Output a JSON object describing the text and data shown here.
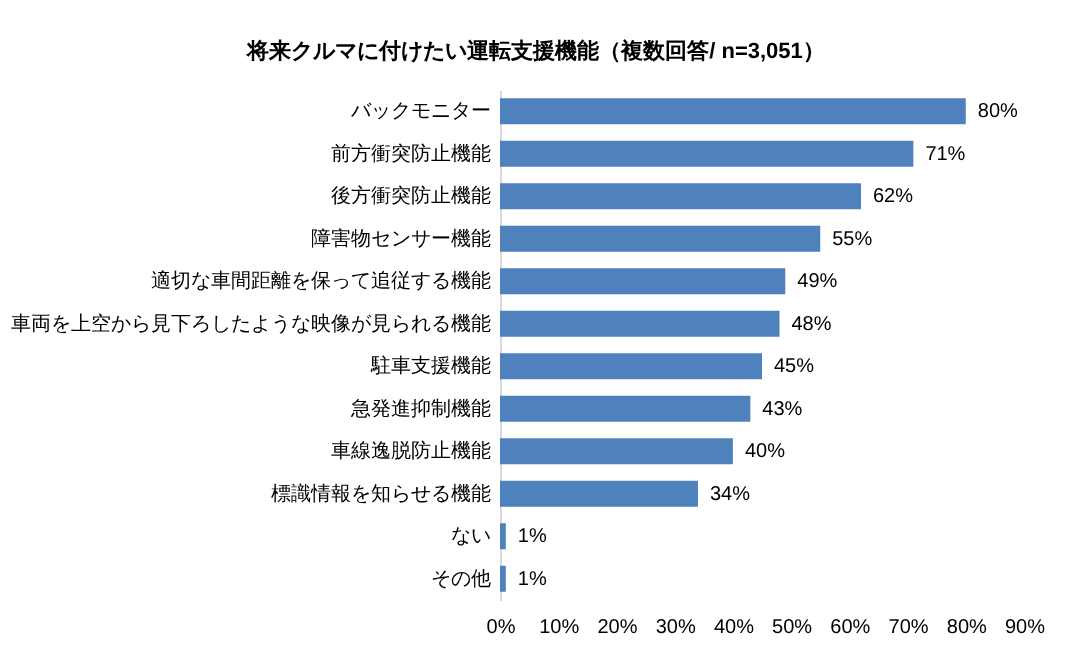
{
  "chart_data": {
    "type": "bar",
    "orientation": "horizontal",
    "title": "将来クルマに付けたい運転支援機能（複数回答/ n=3,051）",
    "categories": [
      "バックモニター",
      "前方衝突防止機能",
      "後方衝突防止機能",
      "障害物センサー機能",
      "適切な車間距離を保って追従する機能",
      "車両を上空から見下ろしたような映像が見られる機能",
      "駐車支援機能",
      "急発進抑制機能",
      "車線逸脱防止機能",
      "標識情報を知らせる機能",
      "ない",
      "その他"
    ],
    "values": [
      80,
      71,
      62,
      55,
      49,
      48,
      45,
      43,
      40,
      34,
      1,
      1
    ],
    "value_labels": [
      "80%",
      "71%",
      "62%",
      "55%",
      "49%",
      "48%",
      "45%",
      "43%",
      "40%",
      "34%",
      "1%",
      "1%"
    ],
    "color": "#4f81bd",
    "xlim": [
      0,
      90
    ],
    "xticks": [
      {
        "value": 0,
        "label": "0%"
      },
      {
        "value": 10,
        "label": "10%"
      },
      {
        "value": 20,
        "label": "20%"
      },
      {
        "value": 30,
        "label": "30%"
      },
      {
        "value": 40,
        "label": "40%"
      },
      {
        "value": 50,
        "label": "50%"
      },
      {
        "value": 60,
        "label": "60%"
      },
      {
        "value": 70,
        "label": "70%"
      },
      {
        "value": 80,
        "label": "80%"
      },
      {
        "value": 90,
        "label": "90%"
      }
    ],
    "grid": false
  }
}
